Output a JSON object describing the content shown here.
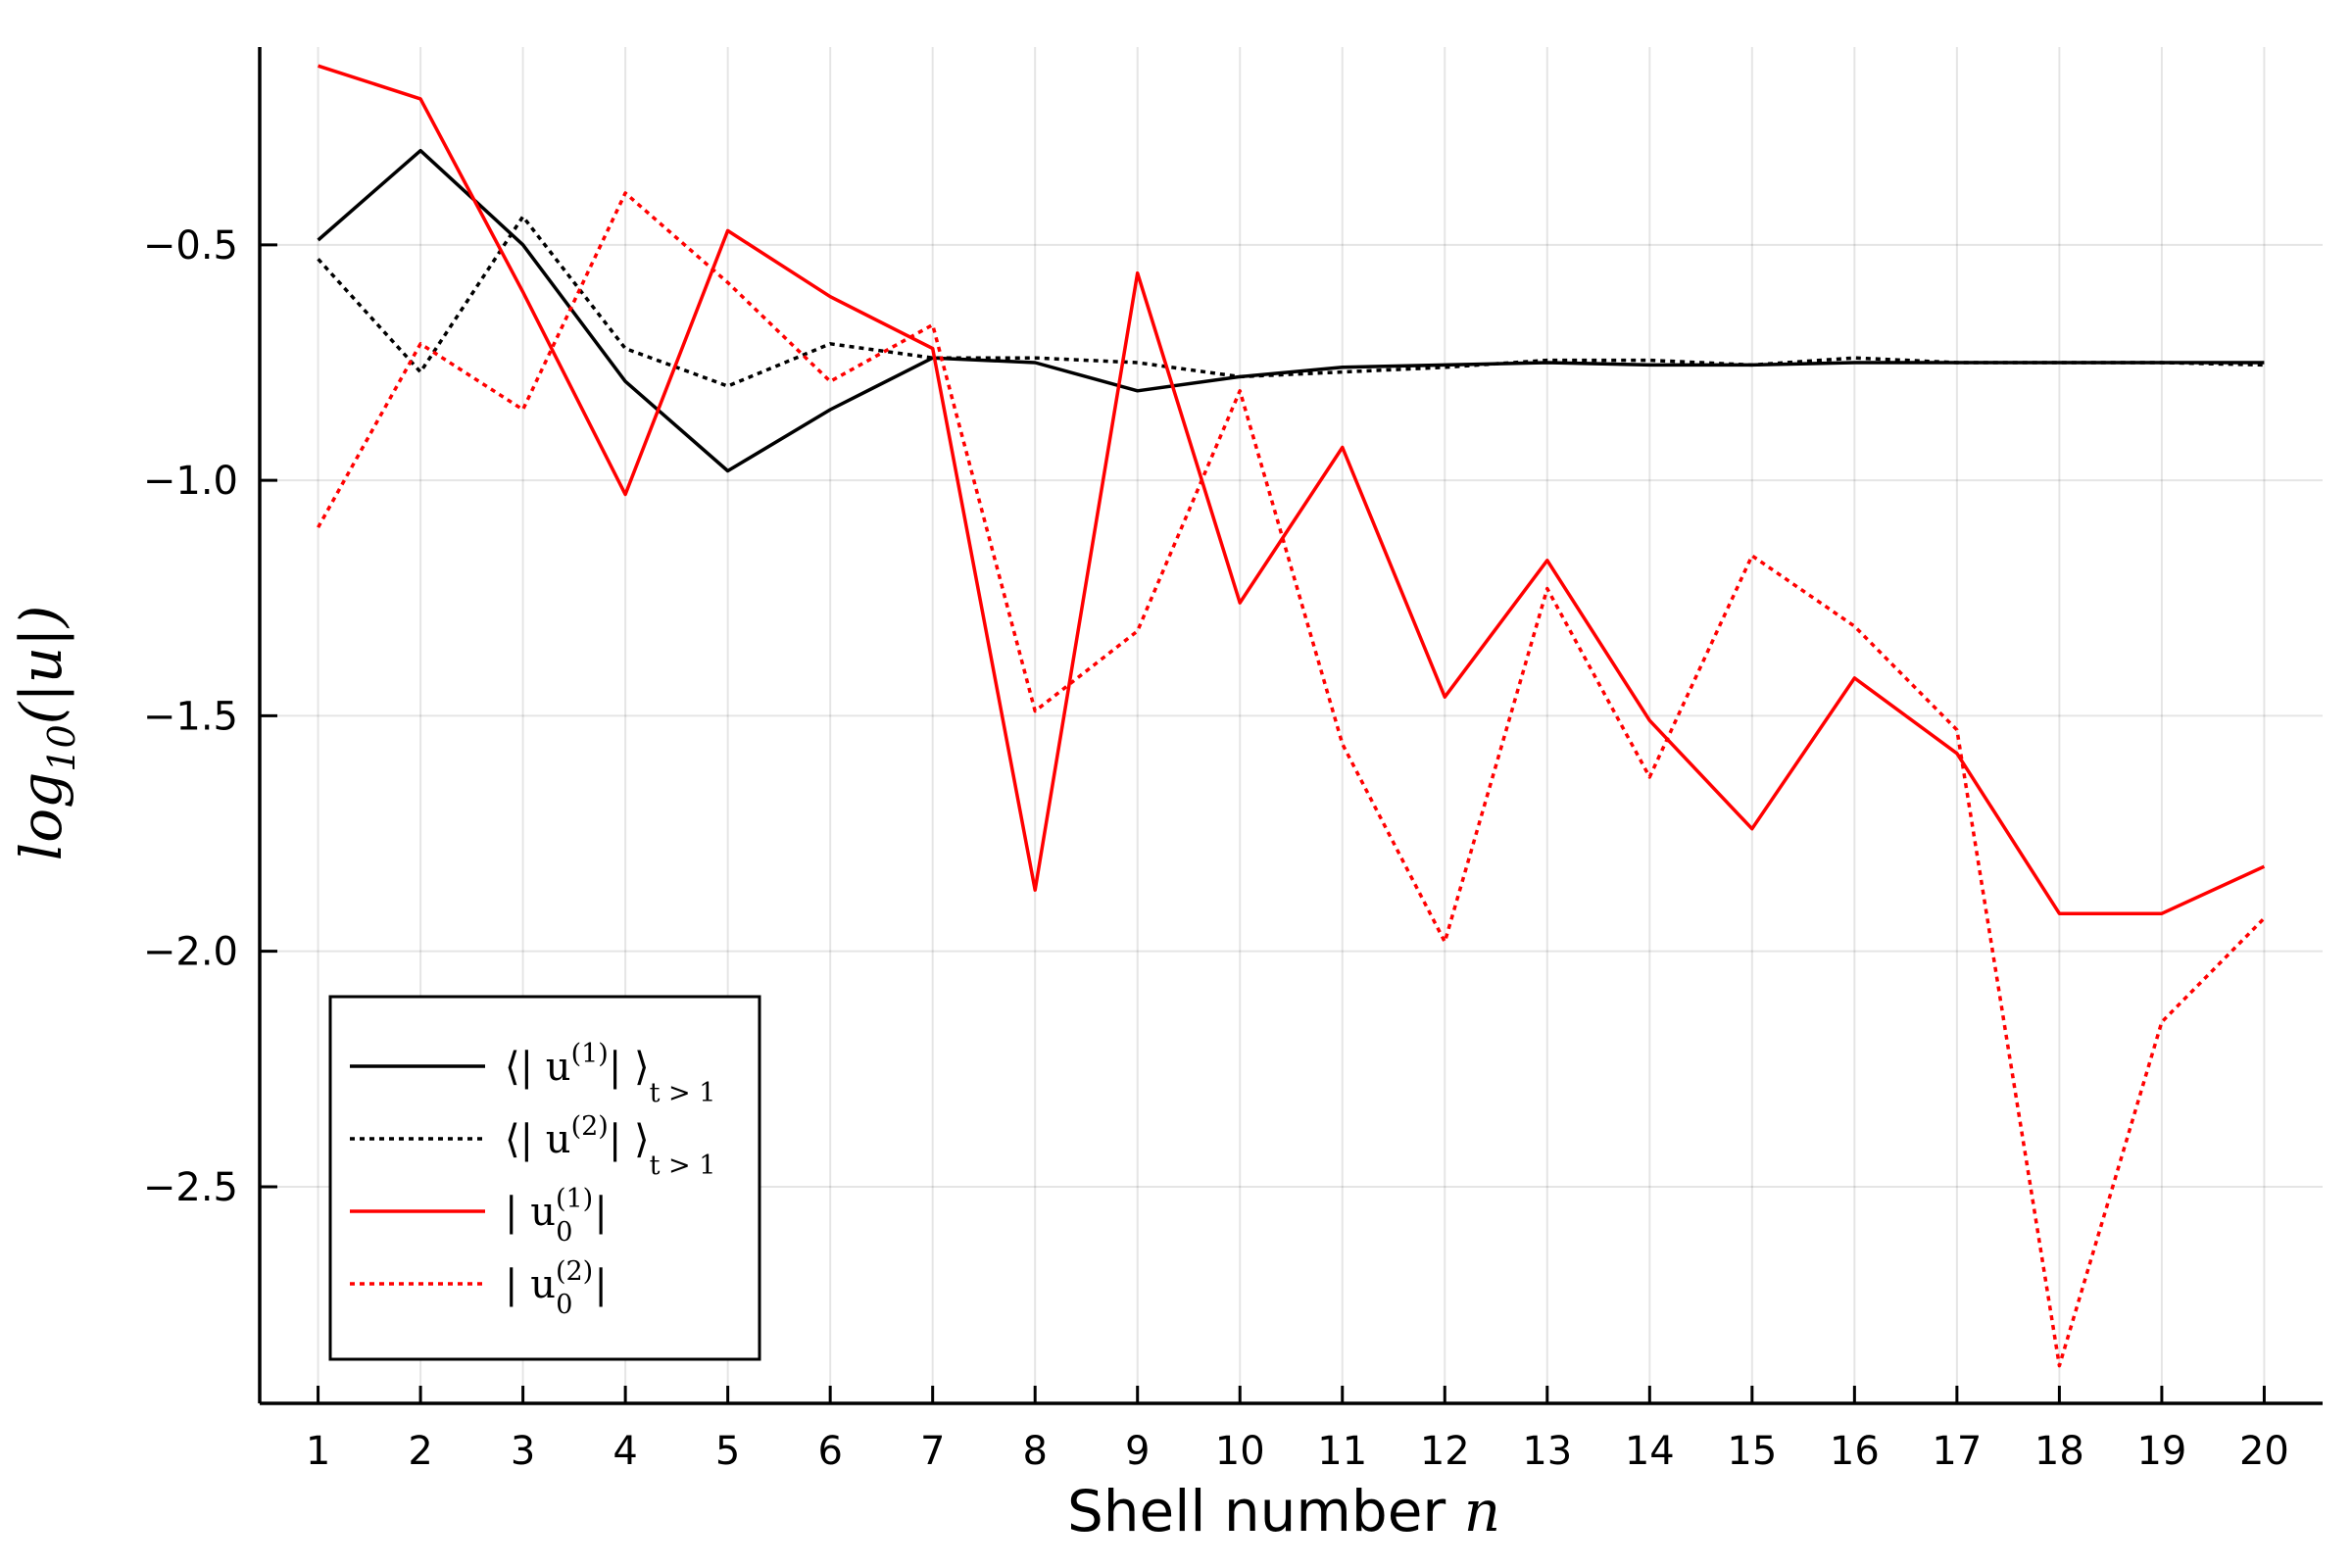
{
  "chart_data": {
    "type": "line",
    "xlabel_text": "Shell number",
    "xlabel_symbol": "n",
    "ylabel_fn": "log",
    "ylabel_sub": "10",
    "ylabel_arg": "(|u|)",
    "x": [
      1,
      2,
      3,
      4,
      5,
      6,
      7,
      8,
      9,
      10,
      11,
      12,
      13,
      14,
      15,
      16,
      17,
      18,
      19,
      20
    ],
    "xlim": [
      0.43,
      20.57
    ],
    "ylim": [
      -2.96,
      -0.08
    ],
    "xticks": [
      "1",
      "2",
      "3",
      "4",
      "5",
      "6",
      "7",
      "8",
      "9",
      "10",
      "11",
      "12",
      "13",
      "14",
      "15",
      "16",
      "17",
      "18",
      "19",
      "20"
    ],
    "yticks": [
      {
        "value": -0.5,
        "label": "−0.5"
      },
      {
        "value": -1.0,
        "label": "−1.0"
      },
      {
        "value": -1.5,
        "label": "−1.5"
      },
      {
        "value": -2.0,
        "label": "−2.0"
      },
      {
        "value": -2.5,
        "label": "−2.5"
      }
    ],
    "grid": true,
    "legend_position": "bottom-left",
    "series": [
      {
        "color": "#000000",
        "dash": "solid",
        "legend_parts": {
          "open": "⟨| u",
          "sup": "(1)",
          "close": "| ⟩",
          "sub": "t > 1"
        },
        "values": [
          -0.49,
          -0.3,
          -0.5,
          -0.79,
          -0.98,
          -0.85,
          -0.74,
          -0.75,
          -0.81,
          -0.78,
          -0.76,
          -0.755,
          -0.75,
          -0.755,
          -0.755,
          -0.75,
          -0.75,
          -0.75,
          -0.75,
          -0.75
        ]
      },
      {
        "color": "#000000",
        "dash": "dotted",
        "legend_parts": {
          "open": "⟨| u",
          "sup": "(2)",
          "close": "| ⟩",
          "sub": "t > 1"
        },
        "values": [
          -0.53,
          -0.77,
          -0.44,
          -0.72,
          -0.8,
          -0.71,
          -0.74,
          -0.74,
          -0.75,
          -0.78,
          -0.77,
          -0.76,
          -0.745,
          -0.745,
          -0.755,
          -0.74,
          -0.75,
          -0.75,
          -0.75,
          -0.755
        ]
      },
      {
        "color": "#ff0000",
        "dash": "solid",
        "legend_parts": {
          "open": "| u",
          "sup": "(1)",
          "sub0": "0",
          "close": "|"
        },
        "values": [
          -0.12,
          -0.19,
          -0.6,
          -1.03,
          -0.47,
          -0.61,
          -0.72,
          -1.87,
          -0.56,
          -1.26,
          -0.93,
          -1.46,
          -1.17,
          -1.51,
          -1.74,
          -1.42,
          -1.58,
          -1.92,
          -1.92,
          -1.82
        ]
      },
      {
        "color": "#ff0000",
        "dash": "dotted",
        "legend_parts": {
          "open": "| u",
          "sup": "(2)",
          "sub0": "0",
          "close": "|"
        },
        "values": [
          -1.1,
          -0.71,
          -0.85,
          -0.39,
          -0.58,
          -0.79,
          -0.67,
          -1.49,
          -1.32,
          -0.81,
          -1.56,
          -1.98,
          -1.23,
          -1.63,
          -1.16,
          -1.31,
          -1.53,
          -2.88,
          -2.15,
          -1.93
        ]
      }
    ]
  }
}
